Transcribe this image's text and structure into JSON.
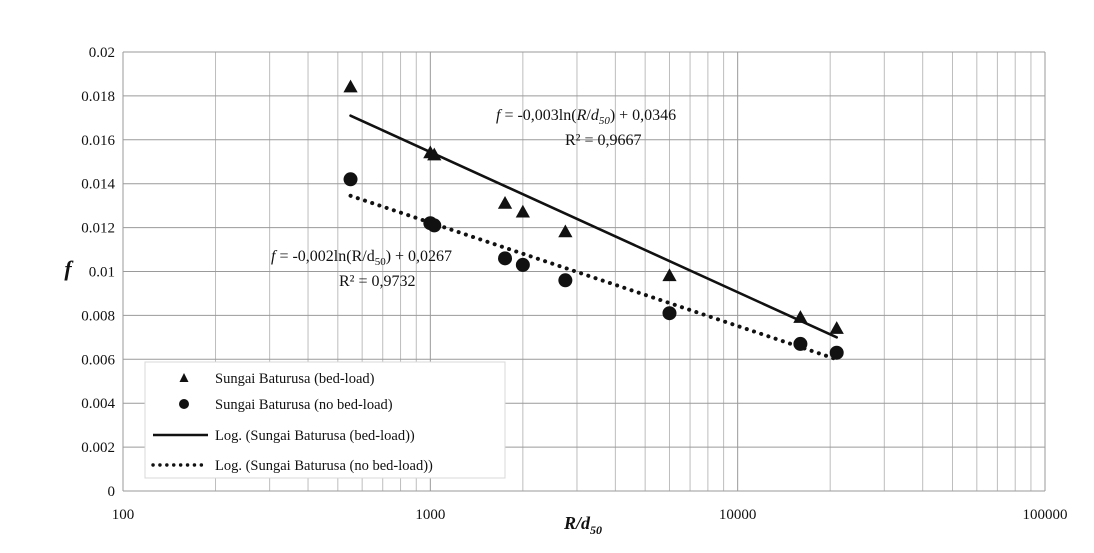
{
  "chart_data": {
    "type": "scatter",
    "title": "",
    "xlabel": "R/d",
    "xlabel_sub": "50",
    "ylabel": "f",
    "xscale": "log",
    "xlim": [
      100,
      100000
    ],
    "ylim": [
      0,
      0.02
    ],
    "grid": true,
    "legend_position": "bottom-left",
    "x_ticks": [
      "100",
      "1000",
      "10000",
      "100000"
    ],
    "y_ticks": [
      "0",
      "0.002",
      "0.004",
      "0.006",
      "0.008",
      "0.01",
      "0.012",
      "0.014",
      "0.016",
      "0.018",
      "0.02"
    ],
    "series": [
      {
        "name": "Sungai Baturusa (bed-load)",
        "marker": "triangle",
        "x": [
          550,
          1000,
          1030,
          1750,
          2000,
          2750,
          6000,
          16000,
          21000
        ],
        "y": [
          0.0184,
          0.0154,
          0.0153,
          0.0131,
          0.0127,
          0.0118,
          0.0098,
          0.0079,
          0.0074
        ]
      },
      {
        "name": "Sungai Baturusa (no bed-load)",
        "marker": "circle",
        "x": [
          550,
          1000,
          1030,
          1750,
          2000,
          2750,
          6000,
          16000,
          21000
        ],
        "y": [
          0.0142,
          0.0122,
          0.0121,
          0.0106,
          0.0103,
          0.0096,
          0.0081,
          0.0067,
          0.0063
        ]
      }
    ],
    "trendlines": [
      {
        "name": "Log. (Sungai Baturusa (bed-load))",
        "style": "solid",
        "x_range": [
          550,
          21000
        ],
        "y_range": [
          0.0171,
          0.007
        ],
        "equation": {
          "lhs": "f",
          "mid": " = -0,003ln(",
          "var_r": "R",
          "var_sep": "/",
          "var_d": "d",
          "sub": "50",
          "rhs": ") + 0,0346"
        },
        "r2": "R² = 0,9667"
      },
      {
        "name": "Log. (Sungai Baturusa (no bed-load))",
        "style": "dotted",
        "x_range": [
          550,
          21000
        ],
        "y_range": [
          0.01345,
          0.006
        ],
        "equation": {
          "lhs": "f",
          "mid": " = -0,002ln(",
          "var_r": "R",
          "var_sep": "/",
          "var_d": "d",
          "sub": "50",
          "rhs": ") + 0,0267"
        },
        "r2": "R² = 0,9732"
      }
    ]
  }
}
